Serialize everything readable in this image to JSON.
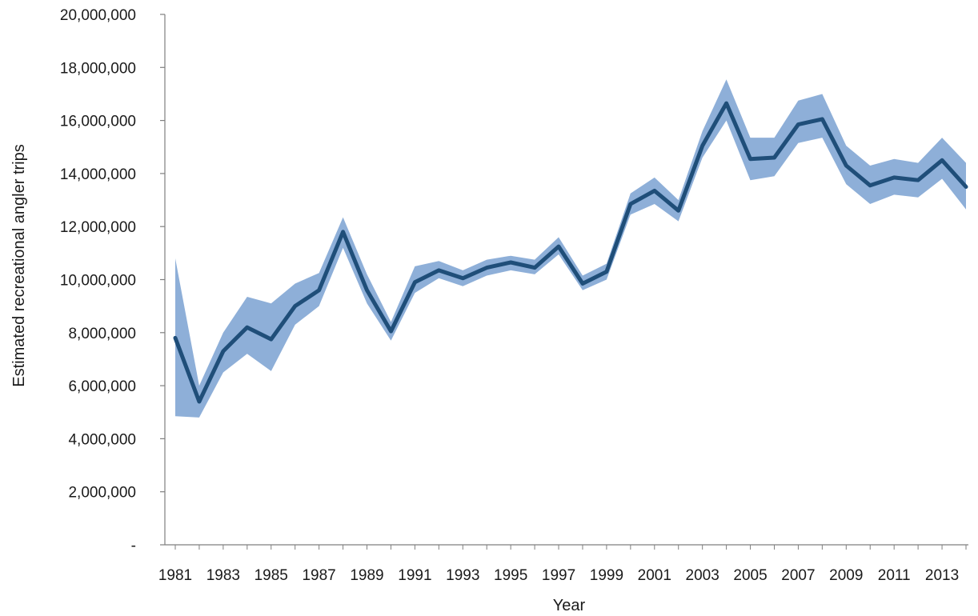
{
  "chart_data": {
    "type": "area",
    "xlabel": "Year",
    "ylabel": "Estimated recreational angler trips",
    "ylim": [
      0,
      20000000
    ],
    "y_ticks": [
      {
        "value": 0,
        "label": "-"
      },
      {
        "value": 2000000,
        "label": "2,000,000"
      },
      {
        "value": 4000000,
        "label": "4,000,000"
      },
      {
        "value": 6000000,
        "label": "6,000,000"
      },
      {
        "value": 8000000,
        "label": "8,000,000"
      },
      {
        "value": 10000000,
        "label": "10,000,000"
      },
      {
        "value": 12000000,
        "label": "12,000,000"
      },
      {
        "value": 14000000,
        "label": "14,000,000"
      },
      {
        "value": 16000000,
        "label": "16,000,000"
      },
      {
        "value": 18000000,
        "label": "18,000,000"
      },
      {
        "value": 20000000,
        "label": "20,000,000"
      }
    ],
    "x_tick_labels": [
      "1981",
      "1983",
      "1985",
      "1987",
      "1989",
      "1991",
      "1993",
      "1995",
      "1997",
      "1999",
      "2001",
      "2003",
      "2005",
      "2007",
      "2009",
      "2011",
      "2013"
    ],
    "grid": false,
    "legend": "none",
    "colors": {
      "line": "#1f4e79",
      "band": "#8eafd8",
      "axis": "#7f7f7f"
    },
    "series": [
      {
        "x": [
          1981,
          1982,
          1983,
          1984,
          1985,
          1986,
          1987,
          1988,
          1989,
          1990,
          1991,
          1992,
          1993,
          1994,
          1995,
          1996,
          1997,
          1998,
          1999,
          2000,
          2001,
          2002,
          2003,
          2004,
          2005,
          2006,
          2007,
          2008,
          2009,
          2010,
          2011,
          2012,
          2013,
          2014
        ],
        "y": [
          7800000,
          5400000,
          7300000,
          8200000,
          7750000,
          9000000,
          9600000,
          11800000,
          9600000,
          8050000,
          9900000,
          10350000,
          10050000,
          10450000,
          10650000,
          10450000,
          11250000,
          9850000,
          10300000,
          12850000,
          13350000,
          12600000,
          15050000,
          16650000,
          14550000,
          14600000,
          15850000,
          16050000,
          14300000,
          13550000,
          13850000,
          13750000,
          14500000,
          13500000
        ],
        "lower": [
          4850000,
          4800000,
          6500000,
          7200000,
          6550000,
          8300000,
          9000000,
          11200000,
          9100000,
          7700000,
          9500000,
          10050000,
          9750000,
          10150000,
          10350000,
          10200000,
          10950000,
          9600000,
          10000000,
          12450000,
          12850000,
          12200000,
          14600000,
          16000000,
          13750000,
          13900000,
          15150000,
          15350000,
          13600000,
          12850000,
          13200000,
          13100000,
          13800000,
          12650000
        ],
        "upper": [
          10800000,
          6000000,
          8000000,
          9350000,
          9100000,
          9850000,
          10250000,
          12350000,
          10200000,
          8400000,
          10500000,
          10700000,
          10350000,
          10750000,
          10900000,
          10750000,
          11600000,
          10150000,
          10600000,
          13250000,
          13850000,
          13000000,
          15600000,
          17550000,
          15350000,
          15350000,
          16750000,
          17000000,
          15050000,
          14300000,
          14550000,
          14400000,
          15350000,
          14400000
        ]
      }
    ]
  }
}
